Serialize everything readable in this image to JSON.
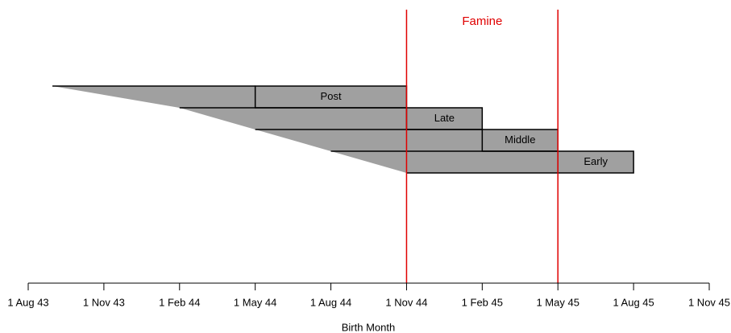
{
  "chart_data": {
    "type": "timeline",
    "xlabel": "Birth Month",
    "annotation": "Famine",
    "annotation_color": "#e00000",
    "fill_color": "#a0a0a0",
    "famine_period": [
      5,
      7
    ],
    "xlim": [
      0,
      9
    ],
    "xticks": [
      {
        "value": 0,
        "label": "1 Aug 43"
      },
      {
        "value": 1,
        "label": "1 Nov 43"
      },
      {
        "value": 2,
        "label": "1 Feb 44"
      },
      {
        "value": 3,
        "label": "1 May 44"
      },
      {
        "value": 4,
        "label": "1 Aug 44"
      },
      {
        "value": 5,
        "label": "1 Nov 44"
      },
      {
        "value": 6,
        "label": "1 Feb 45"
      },
      {
        "value": 7,
        "label": "1 May 45"
      },
      {
        "value": 8,
        "label": "1 Aug 45"
      },
      {
        "value": 9,
        "label": "1 Nov 45"
      }
    ],
    "rows": [
      {
        "name": "Post",
        "start": 0.32,
        "band_start": 3,
        "band_end": 5
      },
      {
        "name": "Late",
        "start": 2,
        "band_start": 5,
        "band_end": 6
      },
      {
        "name": "Middle",
        "start": 3,
        "band_start": 6,
        "band_end": 7
      },
      {
        "name": "Early",
        "start": 4,
        "band_start": 7,
        "band_end": 8
      }
    ]
  }
}
